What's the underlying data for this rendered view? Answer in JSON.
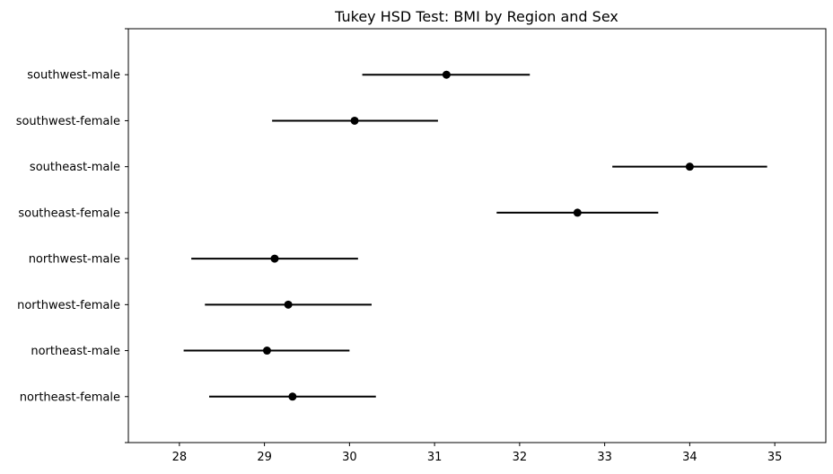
{
  "chart_data": {
    "type": "scatter",
    "title": "Tukey HSD Test: BMI by Region and Sex",
    "xlabel": "",
    "ylabel": "",
    "xlim": [
      27.4,
      35.6
    ],
    "x_ticks": [
      28,
      29,
      30,
      31,
      32,
      33,
      34,
      35
    ],
    "categories": [
      "northeast-female",
      "northeast-male",
      "northwest-female",
      "northwest-male",
      "southeast-female",
      "southeast-male",
      "southwest-female",
      "southwest-male"
    ],
    "series": [
      {
        "values": [
          29.33,
          29.03,
          29.28,
          29.12,
          32.68,
          34.0,
          30.06,
          31.14
        ],
        "lower": [
          28.35,
          28.05,
          28.3,
          28.14,
          31.73,
          33.09,
          29.09,
          30.15
        ],
        "upper": [
          30.31,
          30.0,
          30.26,
          30.1,
          33.63,
          34.91,
          31.04,
          32.12
        ]
      }
    ],
    "grid": false,
    "legend": "none",
    "marker_color": "#000000",
    "line_color": "#000000"
  }
}
